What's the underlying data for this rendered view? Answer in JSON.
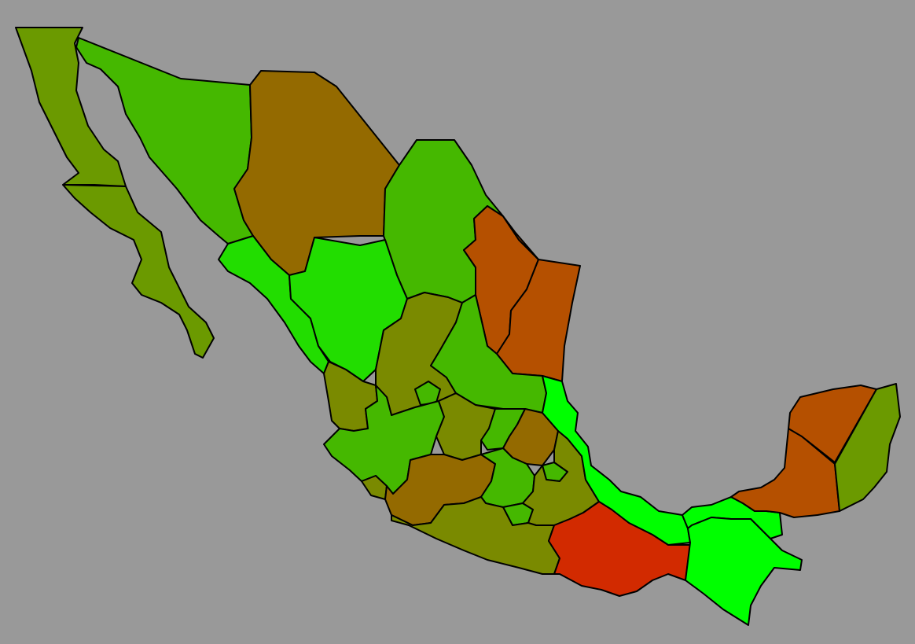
{
  "map": {
    "background": "#999999",
    "border_color": "#000000",
    "regions": [
      {
        "id": "baja-california",
        "fill": "#6b9a00"
      },
      {
        "id": "baja-california-sur",
        "fill": "#6b9a00"
      },
      {
        "id": "sonora",
        "fill": "#45b800"
      },
      {
        "id": "chihuahua",
        "fill": "#946a00"
      },
      {
        "id": "coahuila",
        "fill": "#45b800"
      },
      {
        "id": "nuevo-leon",
        "fill": "#b55000"
      },
      {
        "id": "tamaulipas",
        "fill": "#b55000"
      },
      {
        "id": "sinaloa",
        "fill": "#22dd00"
      },
      {
        "id": "durango",
        "fill": "#22dd00"
      },
      {
        "id": "zacatecas",
        "fill": "#7a8a00"
      },
      {
        "id": "san-luis-potosi",
        "fill": "#45b800"
      },
      {
        "id": "nayarit",
        "fill": "#7a8a00"
      },
      {
        "id": "aguascalientes",
        "fill": "#45b800"
      },
      {
        "id": "jalisco",
        "fill": "#45b800"
      },
      {
        "id": "guanajuato",
        "fill": "#7a8a00"
      },
      {
        "id": "queretaro",
        "fill": "#45b800"
      },
      {
        "id": "hidalgo",
        "fill": "#946a00"
      },
      {
        "id": "colima",
        "fill": "#7a8a00"
      },
      {
        "id": "michoacan",
        "fill": "#946a00"
      },
      {
        "id": "estado-de-mexico",
        "fill": "#45b800"
      },
      {
        "id": "tlaxcala",
        "fill": "#45b800"
      },
      {
        "id": "morelos",
        "fill": "#45b800"
      },
      {
        "id": "puebla",
        "fill": "#7a8a00"
      },
      {
        "id": "guerrero",
        "fill": "#7a8a00"
      },
      {
        "id": "veracruz",
        "fill": "#00ff00"
      },
      {
        "id": "oaxaca",
        "fill": "#d22a00"
      },
      {
        "id": "chiapas",
        "fill": "#00ff00"
      },
      {
        "id": "tabasco",
        "fill": "#00ff00"
      },
      {
        "id": "campeche",
        "fill": "#b55000"
      },
      {
        "id": "yucatan",
        "fill": "#b55000"
      },
      {
        "id": "quintana-roo",
        "fill": "#6b9a00"
      }
    ]
  }
}
